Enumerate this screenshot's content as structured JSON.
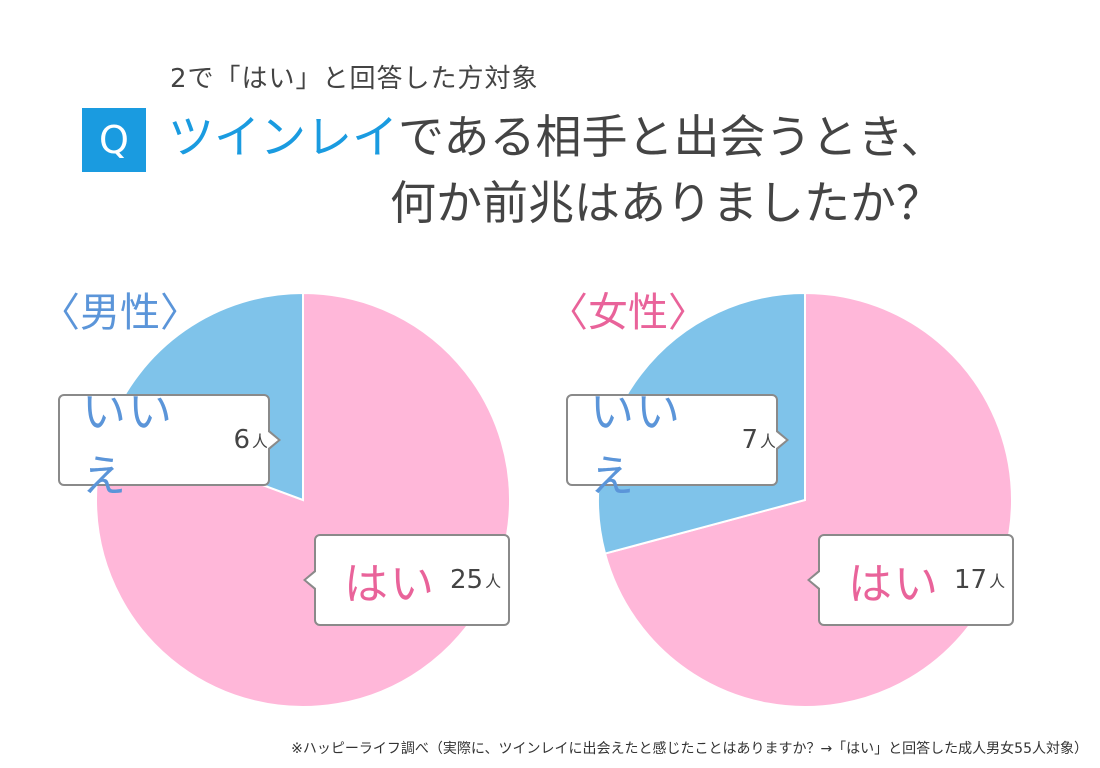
{
  "header": {
    "subtitle": "2で「はい」と回答した方対象",
    "badge": "Q",
    "question_highlight": "ツインレイ",
    "question_rest1": "である相手と出会うとき、",
    "question_line2": "何か前兆はありましたか？"
  },
  "chart_data": [
    {
      "type": "pie",
      "title": "〈男性〉",
      "slices": [
        {
          "label": "はい",
          "value": 25,
          "unit": "人",
          "color": "#ffb7d9"
        },
        {
          "label": "いいえ",
          "value": 6,
          "unit": "人",
          "color": "#7fc3ea"
        }
      ]
    },
    {
      "type": "pie",
      "title": "〈女性〉",
      "slices": [
        {
          "label": "はい",
          "value": 17,
          "unit": "人",
          "color": "#ffb7d9"
        },
        {
          "label": "いいえ",
          "value": 7,
          "unit": "人",
          "color": "#7fc3ea"
        }
      ]
    }
  ],
  "footnote": "※ハッピーライフ調べ（実際に、ツインレイに出会えたと感じたことはありますか？→「はい」と回答した成人男女55人対象）"
}
